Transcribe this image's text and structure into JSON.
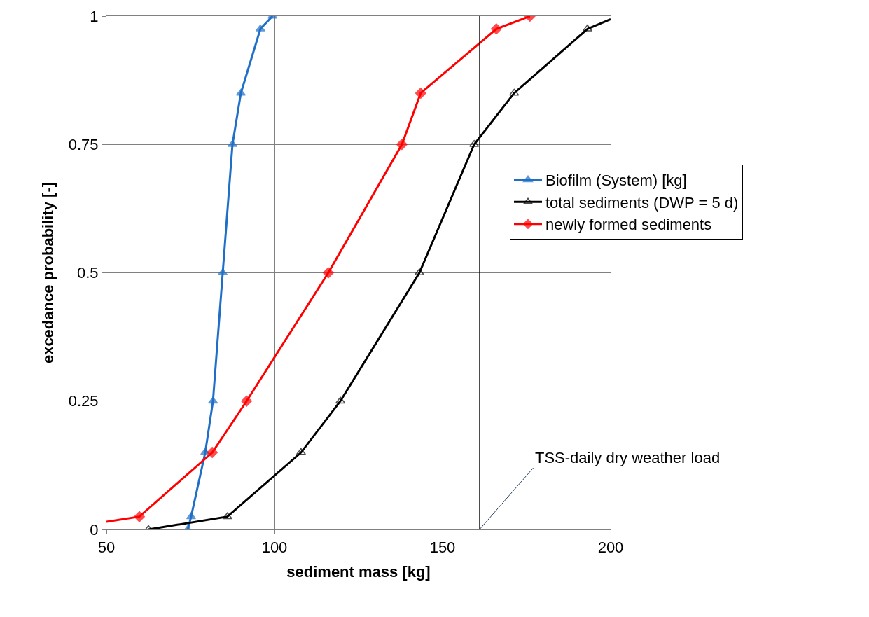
{
  "chart_data": {
    "type": "line",
    "xlabel": "sediment mass [kg]",
    "ylabel": "excedance probability [-]",
    "xlim": [
      50,
      200
    ],
    "xticks": [
      50,
      100,
      150,
      200
    ],
    "ylim": [
      0,
      1
    ],
    "yticks": [
      0,
      0.25,
      0.5,
      0.75,
      1
    ],
    "grid": true,
    "legend": "right",
    "series": [
      {
        "name": "Biofilm (System) [kg]",
        "color": "#1f6fc8",
        "marker": "triangle",
        "x": [
          74.2,
          75.2,
          79.4,
          81.7,
          84.6,
          87.5,
          90,
          95.8,
          99.4
        ],
        "values": [
          0,
          0.025,
          0.15,
          0.25,
          0.5,
          0.75,
          0.85,
          0.975,
          1
        ]
      },
      {
        "name": "total sediments (DWP = 5 d)",
        "color": "#000000",
        "marker": "triangle-open",
        "x": [
          62.5,
          86,
          107.9,
          119.6,
          143.1,
          159.4,
          171.3,
          193.1,
          200
        ],
        "values": [
          0,
          0.025,
          0.15,
          0.25,
          0.5,
          0.75,
          0.85,
          0.975,
          0.994
        ]
      },
      {
        "name": "newly formed sediments",
        "color": "#ff0000",
        "marker": "diamond",
        "x": [
          50,
          59.8,
          81.5,
          91.7,
          116,
          137.9,
          143.5,
          166,
          176
        ],
        "values": [
          0.015,
          0.025,
          0.15,
          0.25,
          0.5,
          0.75,
          0.85,
          0.975,
          1
        ]
      }
    ],
    "ref_lines": [
      {
        "axis": "x",
        "value": 161,
        "color": "#000000"
      }
    ],
    "annotations": [
      {
        "text": "TSS-daily dry weather load",
        "x": 161,
        "y": 0
      }
    ]
  }
}
